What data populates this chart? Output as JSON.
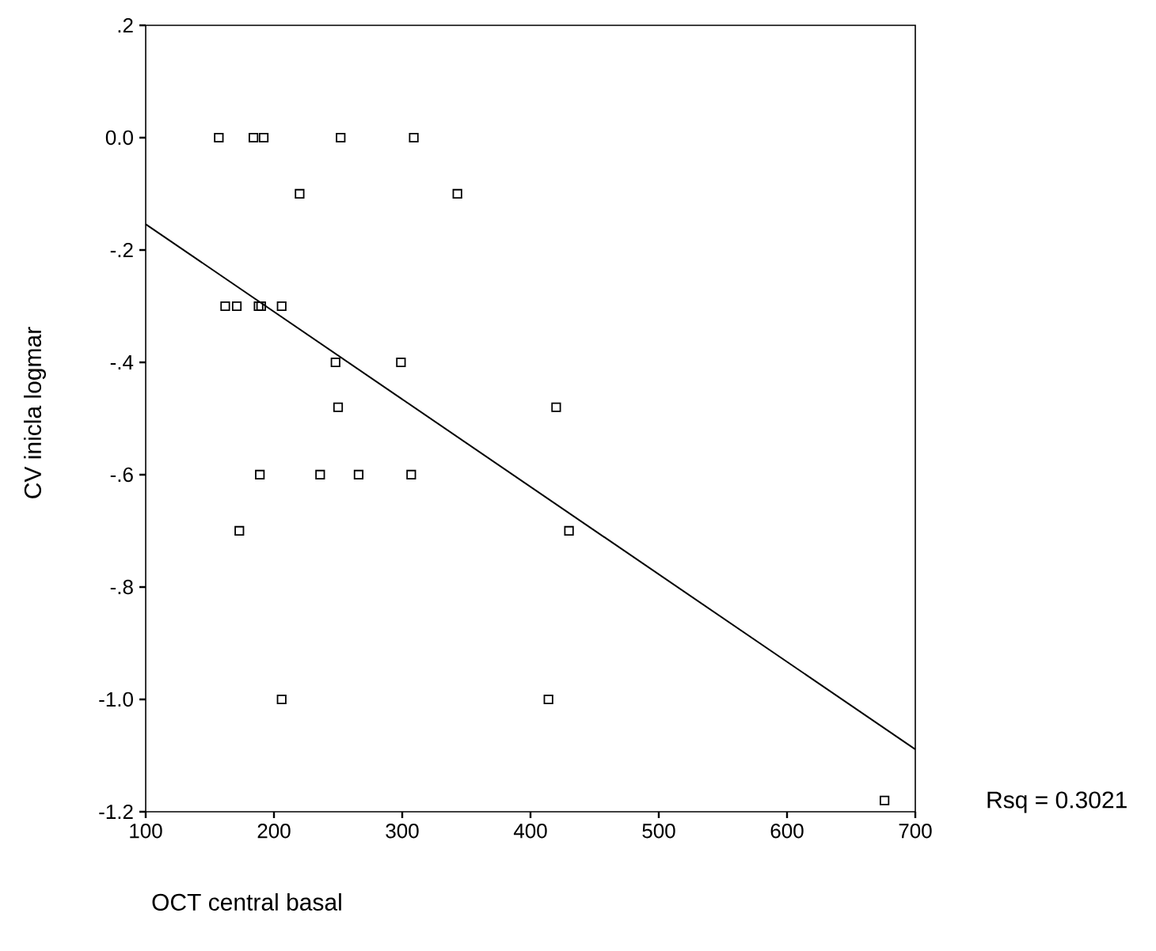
{
  "chart_data": {
    "type": "scatter",
    "xlabel": "OCT central basal",
    "ylabel": "CV inicla logmar",
    "annotations": [
      "Rsq = 0.3021"
    ],
    "xlim": [
      100,
      700
    ],
    "ylim": [
      -1.2,
      0.2
    ],
    "xticks": [
      100,
      200,
      300,
      400,
      500,
      600,
      700
    ],
    "yticks": [
      {
        "value": 0.2,
        "label": ".2"
      },
      {
        "value": 0.0,
        "label": "0.0"
      },
      {
        "value": -0.2,
        "label": "-.2"
      },
      {
        "value": -0.4,
        "label": "-.4"
      },
      {
        "value": -0.6,
        "label": "-.6"
      },
      {
        "value": -0.8,
        "label": "-.8"
      },
      {
        "value": -1.0,
        "label": "-1.0"
      },
      {
        "value": -1.2,
        "label": "-1.2"
      }
    ],
    "marker": "square",
    "series": [
      {
        "color": "#000000",
        "x": [
          157,
          184,
          192,
          252,
          309,
          220,
          343,
          162,
          171,
          188,
          190,
          206,
          248,
          299,
          250,
          420,
          189,
          236,
          266,
          307,
          173,
          430,
          206,
          414,
          676
        ],
        "values": [
          0.0,
          0.0,
          0.0,
          0.0,
          0.0,
          -0.1,
          -0.1,
          -0.3,
          -0.3,
          -0.3,
          -0.3,
          -0.3,
          -0.4,
          -0.4,
          -0.48,
          -0.48,
          -0.6,
          -0.6,
          -0.6,
          -0.6,
          -0.7,
          -0.7,
          -1.0,
          -1.0,
          -1.18
        ]
      },
      {
        "type": "line",
        "marker": "none",
        "color": "#000000",
        "line_style": "solid",
        "x": [
          100,
          700
        ],
        "values": [
          -0.154,
          -1.089
        ]
      }
    ]
  }
}
